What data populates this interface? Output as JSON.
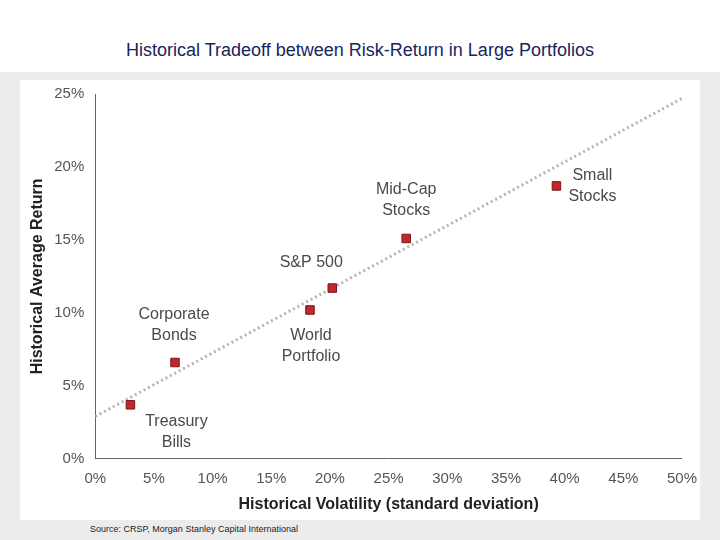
{
  "chart_data": {
    "type": "scatter",
    "title": "Historical Tradeoff between Risk-Return in Large Portfolios",
    "x_label": "Historical Volatility (standard deviation)",
    "y_label": "Historical Average Return",
    "source": "Source: CRSP, Morgan Stanley Capital International",
    "x": [
      3,
      6.8,
      18.3,
      20.2,
      26.5,
      39.3
    ],
    "values": [
      3.7,
      6.6,
      10.2,
      11.7,
      15.1,
      18.7
    ],
    "point_labels": [
      [
        "Treasury",
        "Bills"
      ],
      [
        "Corporate",
        "Bonds"
      ],
      [
        "World",
        "Portfolio"
      ],
      [
        "S&P 500"
      ],
      [
        "Mid-Cap",
        "Stocks"
      ],
      [
        "Small",
        "Stocks"
      ]
    ],
    "color": "#c1272d",
    "marker": "square",
    "trend_line": {
      "x": [
        0,
        50
      ],
      "values": [
        2.9,
        24.7
      ],
      "line_style": "dotted",
      "color": "#b4b4b4"
    },
    "xlim": [
      0,
      50
    ],
    "xticks": [
      {
        "value": 0,
        "label": "0%"
      },
      {
        "value": 5,
        "label": "5%"
      },
      {
        "value": 10,
        "label": "10%"
      },
      {
        "value": 15,
        "label": "15%"
      },
      {
        "value": 20,
        "label": "20%"
      },
      {
        "value": 25,
        "label": "25%"
      },
      {
        "value": 30,
        "label": "30%"
      },
      {
        "value": 35,
        "label": "35%"
      },
      {
        "value": 40,
        "label": "40%"
      },
      {
        "value": 45,
        "label": "45%"
      },
      {
        "value": 50,
        "label": "50%"
      }
    ],
    "ylim": [
      0,
      25
    ],
    "yticks": [
      {
        "value": 0,
        "label": "0%"
      },
      {
        "value": 5,
        "label": "5%"
      },
      {
        "value": 10,
        "label": "10%"
      },
      {
        "value": 15,
        "label": "15%"
      },
      {
        "value": 20,
        "label": "20%"
      },
      {
        "value": 25,
        "label": "25%"
      }
    ],
    "grid": false
  }
}
